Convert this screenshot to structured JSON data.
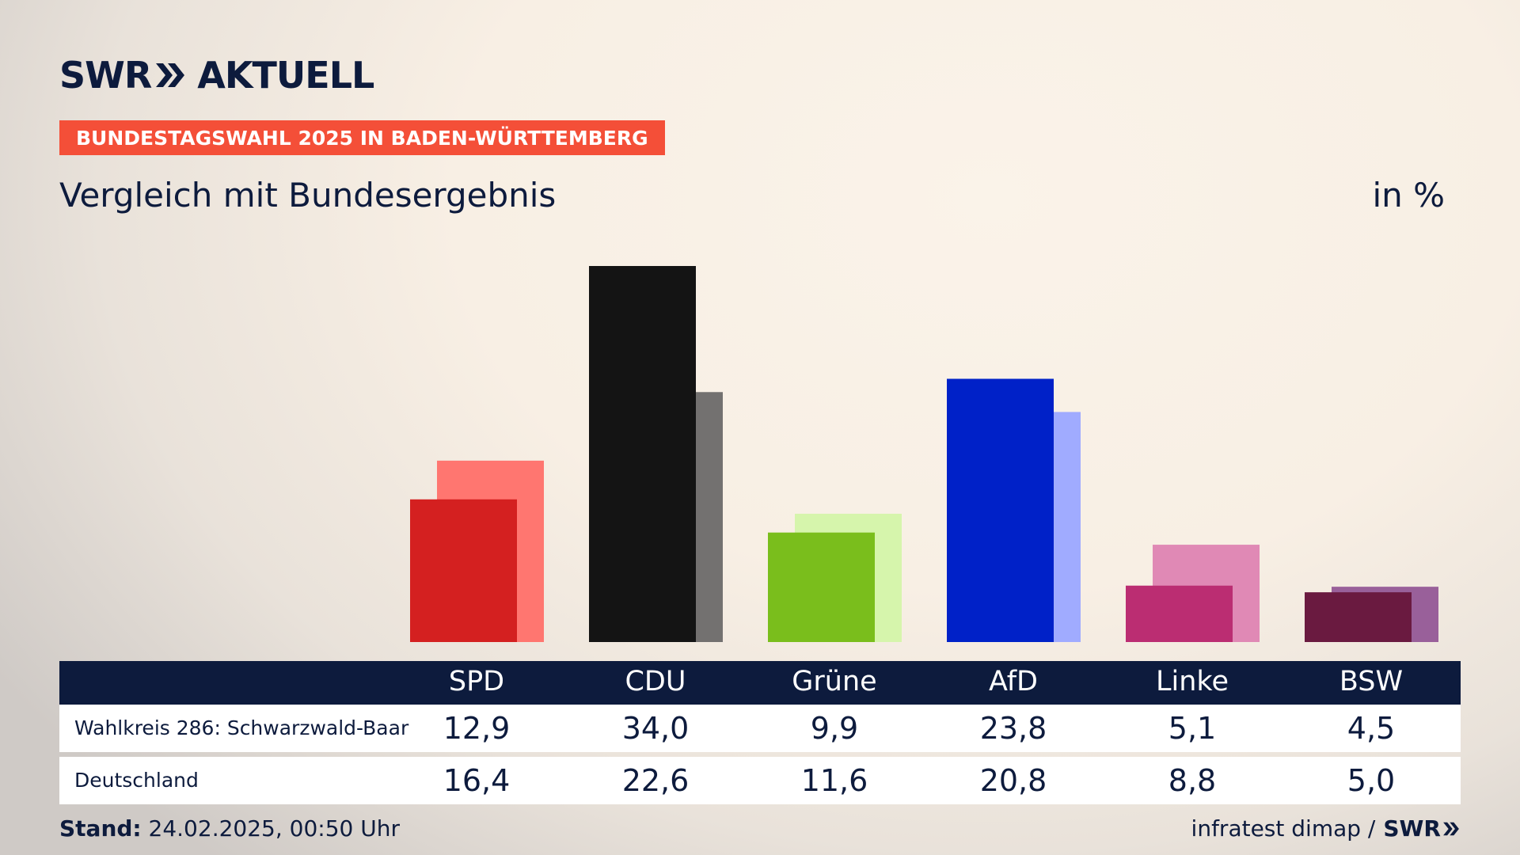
{
  "brand": {
    "swr": "SWR",
    "aktuell": "AKTUELL"
  },
  "badge": "BUNDESTAGSWAHL 2025 IN BADEN-WÜRTTEMBERG",
  "subtitle": "Vergleich mit Bundesergebnis",
  "unit": "in %",
  "colors": {
    "navy": "#0d1b3d",
    "badge": "#f44f38",
    "SPD": [
      "#d42020",
      "#ff7670"
    ],
    "CDU": [
      "#141414",
      "#737170"
    ],
    "Grüne": [
      "#7abe1c",
      "#d6f5ac"
    ],
    "AfD": [
      "#0021c8",
      "#a0abff"
    ],
    "Linke": [
      "#bb2d72",
      "#e089b5"
    ],
    "BSW": [
      "#6a1a40",
      "#99609a"
    ]
  },
  "table": {
    "rows": [
      "Wahlkreis 286: Schwarzwald-Baar",
      "Deutschland"
    ],
    "wk_values": [
      "12,9",
      "34,0",
      "9,9",
      "23,8",
      "5,1",
      "4,5"
    ],
    "de_values": [
      "16,4",
      "22,6",
      "11,6",
      "20,8",
      "8,8",
      "5,0"
    ]
  },
  "chart_data": {
    "type": "bar",
    "categories": [
      "SPD",
      "CDU",
      "Grüne",
      "AfD",
      "Linke",
      "BSW"
    ],
    "series": [
      {
        "name": "Wahlkreis 286: Schwarzwald-Baar",
        "values": [
          12.9,
          34.0,
          9.9,
          23.8,
          5.1,
          4.5
        ]
      },
      {
        "name": "Deutschland",
        "values": [
          16.4,
          22.6,
          11.6,
          20.8,
          8.8,
          5.0
        ]
      }
    ],
    "ylim": [
      0,
      34.0
    ]
  },
  "footer": {
    "stand_label": "Stand:",
    "stand_value": "24.02.2025, 00:50 Uhr",
    "source": "infratest dimap /",
    "source_logo": "SWR"
  }
}
